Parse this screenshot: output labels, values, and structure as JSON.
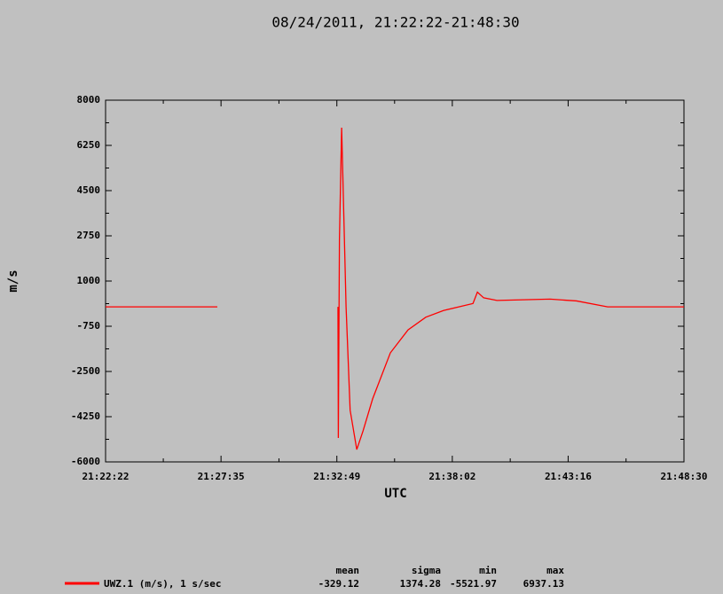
{
  "chart_data": {
    "type": "line",
    "title": "08/24/2011, 21:22:22-21:48:30",
    "x_label": "UTC",
    "y_label": "m/s",
    "x": [
      "21:22:22",
      "21:27:25",
      "21:27:26",
      "21:32:52",
      "21:32:53",
      "21:32:56",
      "21:33:02",
      "21:33:14",
      "21:33:25",
      "21:33:43",
      "21:34:00",
      "21:34:26",
      "21:35:14",
      "21:36:02",
      "21:36:50",
      "21:37:38",
      "21:38:58",
      "21:39:10",
      "21:39:27",
      "21:40:03",
      "21:42:27",
      "21:43:39",
      "21:45:03",
      "21:48:30"
    ],
    "series": [
      {
        "name": "UWZ.1 (m/s), 1 s/sec",
        "color": "#ff0000",
        "values": [
          0,
          0,
          null,
          0,
          -5074,
          2600,
          6937.13,
          0,
          -4000,
          -5521.97,
          -4800,
          -3560,
          -1780,
          -890,
          -400,
          -140,
          130,
          570,
          350,
          250,
          300,
          230,
          0,
          0
        ]
      }
    ],
    "xlim": [
      "21:22:22",
      "21:48:30"
    ],
    "xticks": [
      "21:22:22",
      "21:27:35",
      "21:32:49",
      "21:38:02",
      "21:43:16",
      "21:48:30"
    ],
    "ylim": [
      -6000,
      8000
    ],
    "yticks": [
      -6000,
      -4250,
      -2500,
      -750,
      1000,
      2750,
      4500,
      6250,
      8000
    ],
    "stats": [
      {
        "label": "mean",
        "value": -329.12
      },
      {
        "label": "sigma",
        "value": 1374.28
      },
      {
        "label": "min",
        "value": -5521.97
      },
      {
        "label": "max",
        "value": 6937.13
      }
    ]
  }
}
